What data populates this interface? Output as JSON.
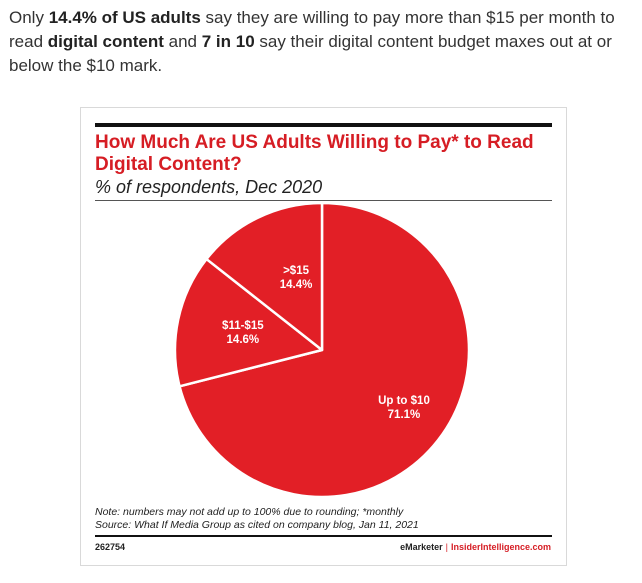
{
  "intro": {
    "p1": "Only ",
    "b1": "14.4% of US adults",
    "p2": " say they are willing to pay more than $15 per month to read ",
    "b2": "digital content",
    "p3": " and ",
    "b3": "7 in 10",
    "p4": " say their digital content budget maxes out at or below the $10 mark."
  },
  "chart_data": {
    "type": "pie",
    "title": "How Much Are US Adults Willing to Pay* to Read Digital Content?",
    "subtitle": "% of respondents, Dec 2020",
    "slices": [
      {
        "label": "Up to $10",
        "value": 71.1,
        "value_label": "71.1%"
      },
      {
        "label": "$11-$15",
        "value": 14.6,
        "value_label": "14.6%"
      },
      {
        "label": ">$15",
        "value": 14.4,
        "value_label": "14.4%"
      }
    ],
    "color": "#e21f26",
    "note": "Note: numbers may not add up to 100% due to rounding; *monthly",
    "source": "Source: What If Media Group as cited on company blog, Jan 11, 2021",
    "chart_id": "262754",
    "brand": "eMarketer",
    "brand_separator": "|",
    "brand_site": "InsiderIntelligence.com"
  }
}
